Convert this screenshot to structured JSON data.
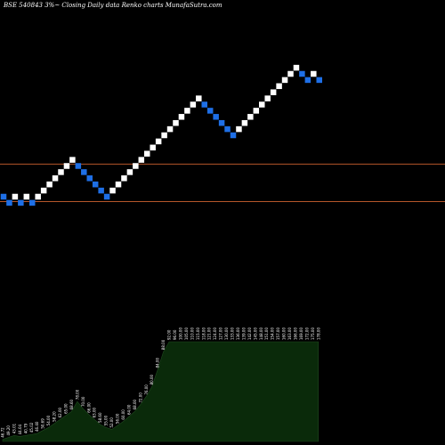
{
  "chart_data": {
    "type": "renko",
    "title": "BSE 540843 3%~  Closing Daily data  Renko  charts MunafaSutra.com",
    "background": "#000000",
    "colors": {
      "up_brick": "#ffffff",
      "down_brick": "#1e6fe6",
      "reference_line": "#b5562a",
      "volume_fill": "#0a2a0a",
      "volume_edge": "#1f4a1f"
    },
    "grid": false,
    "bricks": [
      {
        "dir": "down"
      },
      {
        "dir": "down"
      },
      {
        "dir": "up"
      },
      {
        "dir": "down"
      },
      {
        "dir": "up"
      },
      {
        "dir": "down"
      },
      {
        "dir": "up"
      },
      {
        "dir": "up"
      },
      {
        "dir": "up"
      },
      {
        "dir": "up"
      },
      {
        "dir": "up"
      },
      {
        "dir": "up"
      },
      {
        "dir": "up"
      },
      {
        "dir": "down"
      },
      {
        "dir": "down"
      },
      {
        "dir": "down"
      },
      {
        "dir": "down"
      },
      {
        "dir": "down"
      },
      {
        "dir": "down"
      },
      {
        "dir": "up"
      },
      {
        "dir": "up"
      },
      {
        "dir": "up"
      },
      {
        "dir": "up"
      },
      {
        "dir": "up"
      },
      {
        "dir": "up"
      },
      {
        "dir": "up"
      },
      {
        "dir": "up"
      },
      {
        "dir": "up"
      },
      {
        "dir": "up"
      },
      {
        "dir": "up"
      },
      {
        "dir": "up"
      },
      {
        "dir": "up"
      },
      {
        "dir": "up"
      },
      {
        "dir": "up"
      },
      {
        "dir": "up"
      },
      {
        "dir": "down"
      },
      {
        "dir": "down"
      },
      {
        "dir": "down"
      },
      {
        "dir": "down"
      },
      {
        "dir": "down"
      },
      {
        "dir": "down"
      },
      {
        "dir": "up"
      },
      {
        "dir": "up"
      },
      {
        "dir": "up"
      },
      {
        "dir": "up"
      },
      {
        "dir": "up"
      },
      {
        "dir": "up"
      },
      {
        "dir": "up"
      },
      {
        "dir": "up"
      },
      {
        "dir": "up"
      },
      {
        "dir": "up"
      },
      {
        "dir": "up"
      },
      {
        "dir": "down"
      },
      {
        "dir": "down"
      },
      {
        "dir": "up"
      },
      {
        "dir": "down"
      }
    ],
    "brick_levels": [
      0,
      -1,
      0,
      -1,
      0,
      -1,
      0,
      1,
      2,
      3,
      4,
      5,
      6,
      5,
      4,
      3,
      2,
      1,
      0,
      1,
      2,
      3,
      4,
      5,
      6,
      7,
      8,
      9,
      10,
      11,
      12,
      13,
      14,
      15,
      16,
      15,
      14,
      13,
      12,
      11,
      10,
      11,
      12,
      13,
      14,
      15,
      16,
      17,
      18,
      19,
      20,
      21,
      20,
      19,
      20,
      19
    ],
    "reference_lines": [
      {
        "level": 5.3
      },
      {
        "level": -0.8
      }
    ],
    "volume_bars": [
      {
        "label": "46.72"
      },
      {
        "label": "49.20"
      },
      {
        "label": "43.01"
      },
      {
        "label": "44.04"
      },
      {
        "label": "40.79"
      },
      {
        "label": "45.02"
      },
      {
        "label": "46.40"
      },
      {
        "label": "50.69"
      },
      {
        "label": "54.00"
      },
      {
        "label": "58.20"
      },
      {
        "label": "62.00"
      },
      {
        "label": "65.00"
      },
      {
        "label": "68.60"
      },
      {
        "label": "78.00"
      },
      {
        "label": "70.00"
      },
      {
        "label": "66.00"
      },
      {
        "label": "63.00"
      },
      {
        "label": "58.60"
      },
      {
        "label": "55.00"
      },
      {
        "label": "52.00"
      },
      {
        "label": "56.00"
      },
      {
        "label": "60.00"
      },
      {
        "label": "64.00"
      },
      {
        "label": "68.00"
      },
      {
        "label": "72.00"
      },
      {
        "label": "76.00"
      },
      {
        "label": "80.00"
      },
      {
        "label": "84.00"
      },
      {
        "label": "88.00"
      },
      {
        "label": "92.00"
      },
      {
        "label": "96.00"
      },
      {
        "label": "100.00"
      },
      {
        "label": "105.00"
      },
      {
        "label": "110.00"
      },
      {
        "label": "115.00"
      },
      {
        "label": "118.00"
      },
      {
        "label": "121.00"
      },
      {
        "label": "124.00"
      },
      {
        "label": "127.00"
      },
      {
        "label": "130.00"
      },
      {
        "label": "133.00"
      },
      {
        "label": "136.00"
      },
      {
        "label": "139.00"
      },
      {
        "label": "142.00"
      },
      {
        "label": "145.00"
      },
      {
        "label": "148.00"
      },
      {
        "label": "151.00"
      },
      {
        "label": "154.00"
      },
      {
        "label": "157.00"
      },
      {
        "label": "160.00"
      },
      {
        "label": "163.00"
      },
      {
        "label": "166.00"
      },
      {
        "label": "169.00"
      },
      {
        "label": "172.00"
      },
      {
        "label": "175.00"
      },
      {
        "label": "178.00"
      }
    ],
    "volume_levels": [
      0.02,
      0.04,
      0.06,
      0.05,
      0.06,
      0.07,
      0.08,
      0.11,
      0.14,
      0.18,
      0.22,
      0.26,
      0.3,
      0.4,
      0.33,
      0.27,
      0.22,
      0.17,
      0.14,
      0.12,
      0.16,
      0.2,
      0.25,
      0.3,
      0.37,
      0.45,
      0.55,
      0.72,
      0.9,
      1,
      1,
      1,
      1,
      1,
      1,
      1,
      1,
      1,
      1,
      1,
      1,
      1,
      1,
      1,
      1,
      1,
      1,
      1,
      1,
      1,
      1,
      1,
      1,
      1,
      1,
      1
    ]
  }
}
